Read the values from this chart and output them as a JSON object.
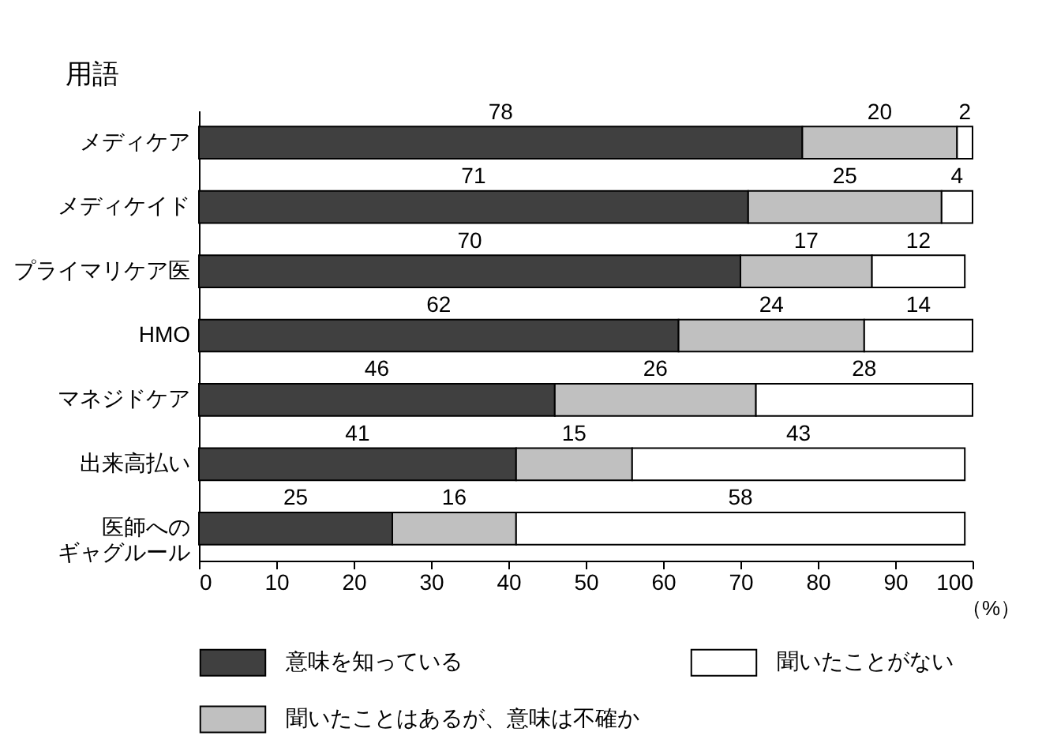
{
  "chart_data": {
    "type": "bar",
    "orientation": "horizontal",
    "stacked": true,
    "ylabel": "用語",
    "xlabel": "（%）",
    "categories": [
      "メディケア",
      "メディケイド",
      "プライマリケア医",
      "HMO",
      "マネジドケア",
      "出来高払い",
      "医師へのギャグルール"
    ],
    "series": [
      {
        "name": "意味を知っている",
        "color": "#404040",
        "values": [
          78,
          71,
          70,
          62,
          46,
          41,
          25
        ]
      },
      {
        "name": "聞いたことはあるが、意味は不確か",
        "color": "#c0c0c0",
        "values": [
          20,
          25,
          17,
          24,
          26,
          15,
          16
        ]
      },
      {
        "name": "聞いたことがない",
        "color": "#ffffff",
        "values": [
          2,
          4,
          12,
          14,
          28,
          43,
          58
        ]
      }
    ],
    "xlim": [
      0,
      100
    ],
    "xticks": [
      0,
      10,
      20,
      30,
      40,
      50,
      60,
      70,
      80,
      90,
      100
    ],
    "data_labels": true,
    "grid": false,
    "legend": "bottom"
  }
}
